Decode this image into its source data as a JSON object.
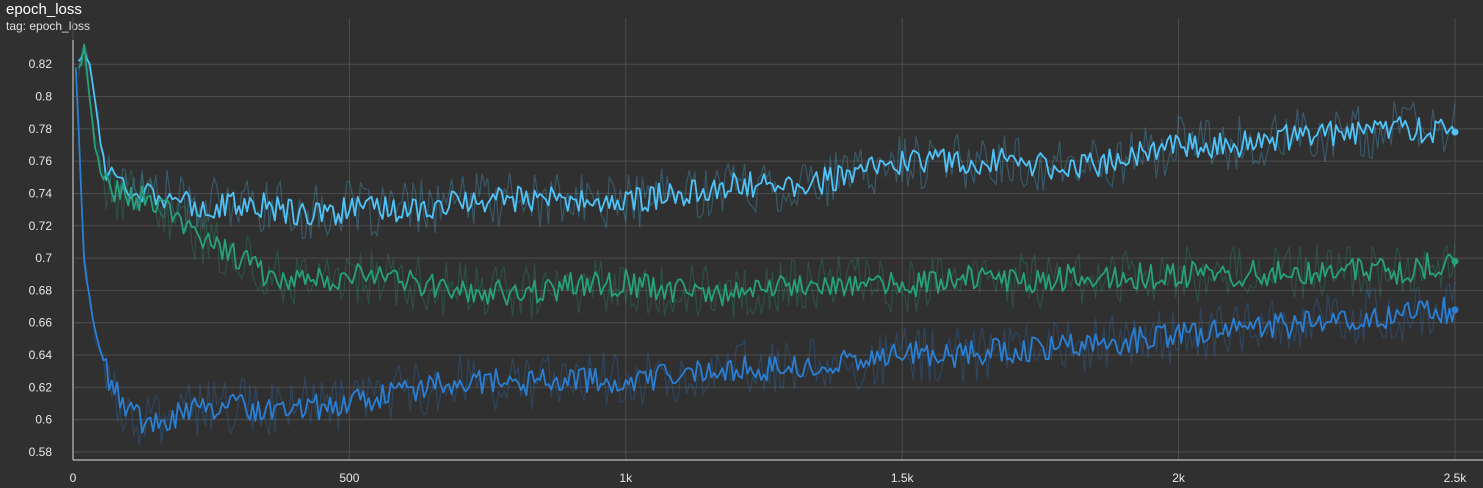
{
  "card": {
    "title": "epoch_loss",
    "subtitle": "tag: epoch_loss"
  },
  "colors": {
    "background": "#303030",
    "grid": "#4d4d4d",
    "axis": "#bdbdbd",
    "series_light_blue": "#4fc3f7",
    "series_teal": "#26a17a",
    "series_blue": "#2a7fd4"
  },
  "chart_data": {
    "type": "line",
    "title": "epoch_loss",
    "xlabel": "",
    "ylabel": "",
    "xlim": [
      0,
      2520
    ],
    "ylim": [
      0.575,
      0.835
    ],
    "x_ticks": [
      {
        "value": 0,
        "label": "0"
      },
      {
        "value": 500,
        "label": "500"
      },
      {
        "value": 1000,
        "label": "1k"
      },
      {
        "value": 1500,
        "label": "1.5k"
      },
      {
        "value": 2000,
        "label": "2k"
      },
      {
        "value": 2500,
        "label": "2.5k"
      }
    ],
    "y_ticks": [
      {
        "value": 0.58,
        "label": "0.58"
      },
      {
        "value": 0.6,
        "label": "0.6"
      },
      {
        "value": 0.62,
        "label": "0.62"
      },
      {
        "value": 0.64,
        "label": "0.64"
      },
      {
        "value": 0.66,
        "label": "0.66"
      },
      {
        "value": 0.68,
        "label": "0.68"
      },
      {
        "value": 0.7,
        "label": "0.7"
      },
      {
        "value": 0.72,
        "label": "0.72"
      },
      {
        "value": 0.74,
        "label": "0.74"
      },
      {
        "value": 0.76,
        "label": "0.76"
      },
      {
        "value": 0.78,
        "label": "0.78"
      },
      {
        "value": 0.8,
        "label": "0.8"
      },
      {
        "value": 0.82,
        "label": "0.82"
      }
    ],
    "grid": true,
    "legend": "none",
    "series": [
      {
        "color": "#4fc3f7",
        "x": [
          10,
          20,
          30,
          40,
          50,
          60,
          80,
          100,
          150,
          200,
          250,
          300,
          350,
          400,
          450,
          500,
          600,
          700,
          800,
          900,
          1000,
          1100,
          1200,
          1300,
          1400,
          1500,
          1600,
          1700,
          1800,
          1900,
          2000,
          2100,
          2200,
          2300,
          2400,
          2500
        ],
        "y": [
          0.82,
          0.83,
          0.82,
          0.8,
          0.77,
          0.755,
          0.748,
          0.745,
          0.74,
          0.733,
          0.732,
          0.733,
          0.733,
          0.728,
          0.728,
          0.73,
          0.73,
          0.735,
          0.737,
          0.735,
          0.735,
          0.74,
          0.745,
          0.745,
          0.75,
          0.76,
          0.76,
          0.76,
          0.755,
          0.762,
          0.77,
          0.77,
          0.775,
          0.778,
          0.78,
          0.778
        ]
      },
      {
        "color": "#26a17a",
        "x": [
          10,
          20,
          30,
          40,
          50,
          60,
          80,
          100,
          150,
          200,
          250,
          300,
          350,
          400,
          450,
          500,
          600,
          700,
          800,
          900,
          1000,
          1100,
          1200,
          1300,
          1400,
          1500,
          1600,
          1700,
          1800,
          1900,
          2000,
          2100,
          2200,
          2300,
          2400,
          2500
        ],
        "y": [
          0.815,
          0.83,
          0.8,
          0.77,
          0.755,
          0.745,
          0.74,
          0.738,
          0.735,
          0.72,
          0.71,
          0.7,
          0.69,
          0.688,
          0.687,
          0.69,
          0.685,
          0.68,
          0.678,
          0.683,
          0.685,
          0.68,
          0.678,
          0.683,
          0.685,
          0.683,
          0.688,
          0.685,
          0.688,
          0.688,
          0.69,
          0.69,
          0.692,
          0.692,
          0.692,
          0.698
        ]
      },
      {
        "color": "#2a7fd4",
        "x": [
          5,
          10,
          15,
          20,
          30,
          40,
          50,
          60,
          80,
          100,
          130,
          160,
          200,
          250,
          300,
          350,
          400,
          450,
          500,
          600,
          700,
          800,
          900,
          1000,
          1100,
          1200,
          1300,
          1400,
          1500,
          1600,
          1700,
          1800,
          1900,
          2000,
          2100,
          2200,
          2300,
          2400,
          2500
        ],
        "y": [
          0.82,
          0.78,
          0.74,
          0.7,
          0.675,
          0.655,
          0.64,
          0.63,
          0.615,
          0.605,
          0.598,
          0.6,
          0.605,
          0.608,
          0.608,
          0.607,
          0.61,
          0.608,
          0.61,
          0.618,
          0.625,
          0.622,
          0.625,
          0.625,
          0.628,
          0.632,
          0.632,
          0.635,
          0.64,
          0.64,
          0.643,
          0.645,
          0.648,
          0.652,
          0.656,
          0.658,
          0.662,
          0.665,
          0.668
        ]
      }
    ]
  }
}
